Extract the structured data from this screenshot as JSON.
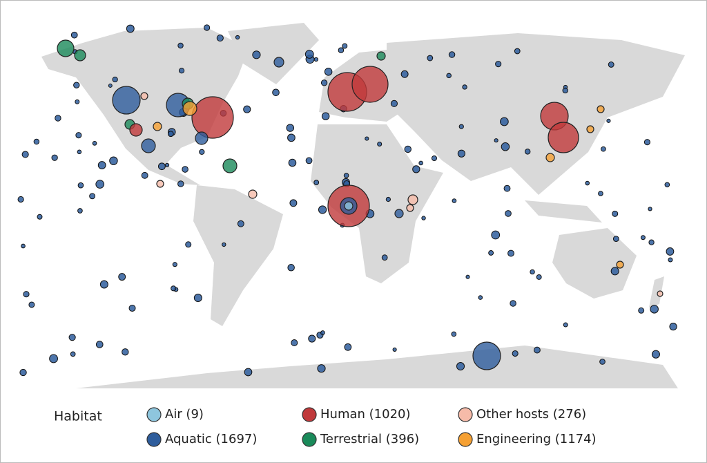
{
  "legend": {
    "title": "Habitat",
    "items": [
      {
        "label": "Air (9)",
        "color": "#8ec6de"
      },
      {
        "label": "Human (1020)",
        "color": "#c0393b"
      },
      {
        "label": "Other hosts (276)",
        "color": "#f6bba9"
      },
      {
        "label": "Aquatic (1697)",
        "color": "#2e5d9c"
      },
      {
        "label": "Terrestrial (396)",
        "color": "#1a8a5a"
      },
      {
        "label": "Engineering (1174)",
        "color": "#f5a033"
      }
    ]
  }
}
